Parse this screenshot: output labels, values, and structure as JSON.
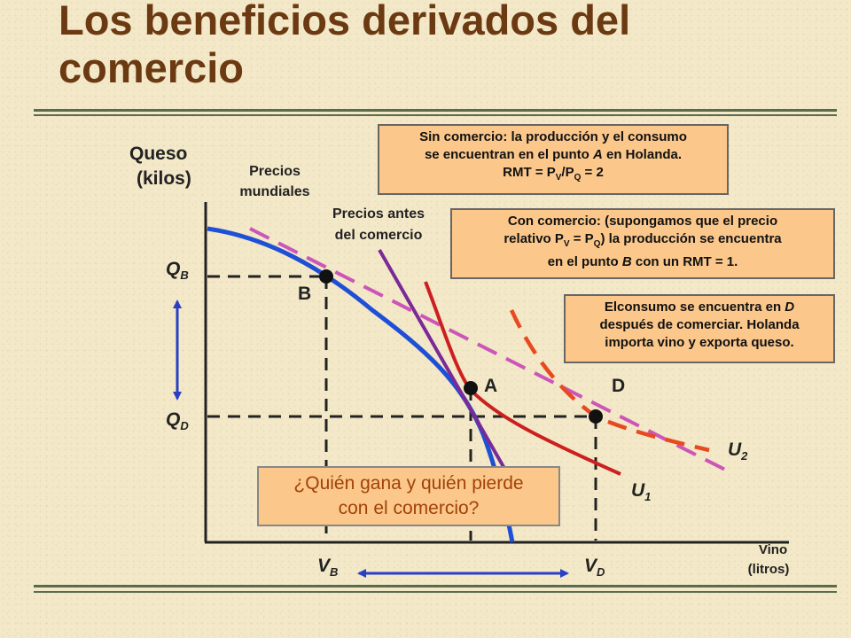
{
  "slide": {
    "title_line1": "Los beneficios derivados del",
    "title_line2": "comercio"
  },
  "axes": {
    "y_label_1": "Queso",
    "y_label_2": "(kilos)",
    "x_label_1": "Vino",
    "x_label_2": "(litros)"
  },
  "labels": {
    "world_prices_1": "Precios",
    "world_prices_2": "mundiales",
    "pretrade_prices_1": "Precios antes",
    "pretrade_prices_2": "del comercio",
    "point_a": "A",
    "point_b": "B",
    "point_d": "D",
    "q_b": {
      "main": "Q",
      "sub": "B"
    },
    "q_d": {
      "main": "Q",
      "sub": "D"
    },
    "v_b": {
      "main": "V",
      "sub": "B"
    },
    "v_d": {
      "main": "V",
      "sub": "D"
    },
    "u1": {
      "main": "U",
      "sub": "1"
    },
    "u2": {
      "main": "U",
      "sub": "2"
    }
  },
  "boxes": {
    "no_trade": {
      "line1": "Sin comercio: la producción y el consumo",
      "line2_a": "se encuentran en el punto ",
      "line2_b": "A",
      "line2_c": " en Holanda.",
      "line3_a": "RMT = P",
      "line3_sub1": "V",
      "line3_b": "/P",
      "line3_sub2": "Q",
      "line3_c": " = 2"
    },
    "with_trade": {
      "line1": "Con comercio: (supongamos que el precio",
      "line2_a": "relativo P",
      "line2_sub1": "V",
      "line2_b": " = P",
      "line2_sub2": "Q",
      "line2_c": ") la producción se encuentra",
      "line3_a": "en el punto ",
      "line3_b": "B",
      "line3_c": " con un RMT = 1."
    },
    "consumption": {
      "line1_a": "Elconsumo se encuentra en ",
      "line1_b": "D",
      "line2": "después de comerciar. Holanda",
      "line3": "importa vino y exporta queso."
    },
    "question": {
      "line1": "¿Quién gana y quién pierde",
      "line2": "con el comercio?"
    }
  },
  "colors": {
    "ppf": "#1f4fd6",
    "world_price_line": "#cc55b8",
    "pretrade_price_line": "#7a2a98",
    "indifference": "#cc2020",
    "indifference_dashed": "#e84a20",
    "arrow": "#2a3fc4",
    "title": "#6b3a12"
  }
}
